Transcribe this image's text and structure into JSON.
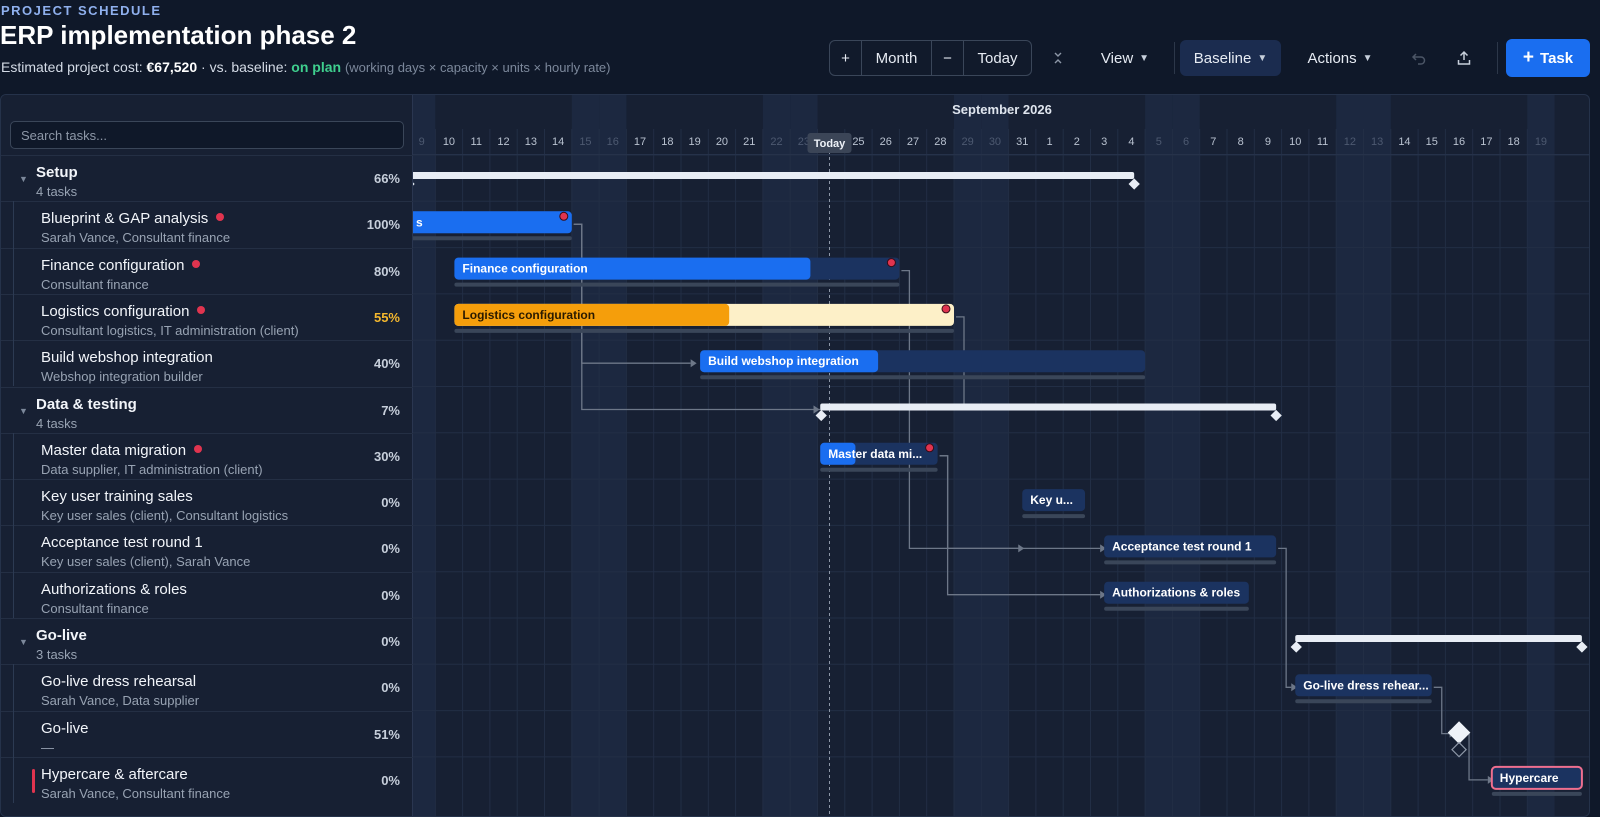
{
  "header": {
    "eyebrow": "PROJECT SCHEDULE",
    "title": "ERP implementation phase 2",
    "cost_label": "Estimated project cost:",
    "cost_value": "€67,520",
    "baseline_label": "· vs. baseline:",
    "baseline_status": "on plan",
    "cost_note": "(working days × capacity × units × hourly rate)"
  },
  "toolbar": {
    "zoom_in": "+",
    "scale": "Month",
    "zoom_out": "−",
    "today": "Today",
    "view": "View",
    "baseline": "Baseline",
    "actions": "Actions",
    "add_task": "Task",
    "colors": {
      "primary": "#1a6ef0",
      "baseline_bg": "#1b2c4f"
    }
  },
  "search": {
    "placeholder": "Search tasks..."
  },
  "timeline": {
    "month_label": "September 2026",
    "today_label": "Today",
    "days": [
      "9",
      "10",
      "11",
      "12",
      "13",
      "14",
      "15",
      "16",
      "17",
      "18",
      "19",
      "20",
      "21",
      "22",
      "23",
      "24",
      "25",
      "26",
      "27",
      "28",
      "29",
      "30",
      "31",
      "1",
      "2",
      "3",
      "4",
      "5",
      "6",
      "7",
      "8",
      "9",
      "10",
      "11",
      "12",
      "13",
      "14",
      "15",
      "16",
      "17",
      "18",
      "19"
    ],
    "dim_days": [
      0,
      6,
      7,
      13,
      14,
      20,
      21,
      27,
      28,
      34,
      35,
      41
    ],
    "today_index": 15
  },
  "rows": [
    {
      "kind": "group",
      "name": "Setup",
      "sub": "4 tasks",
      "pct": "66%"
    },
    {
      "kind": "task",
      "name": "Blueprint & GAP analysis",
      "sub": "Sarah Vance, Consultant finance",
      "pct": "100%",
      "dot": true
    },
    {
      "kind": "task",
      "name": "Finance configuration",
      "sub": "Consultant finance",
      "pct": "80%",
      "dot": true
    },
    {
      "kind": "task",
      "name": "Logistics configuration",
      "sub": "Consultant logistics, IT administration (client)",
      "pct": "55%",
      "dot": true,
      "pct_color": "#f5b82e"
    },
    {
      "kind": "task",
      "name": "Build webshop integration",
      "sub": "Webshop integration builder",
      "pct": "40%"
    },
    {
      "kind": "group",
      "name": "Data & testing",
      "sub": "4 tasks",
      "pct": "7%"
    },
    {
      "kind": "task",
      "name": "Master data migration",
      "sub": "Data supplier, IT administration (client)",
      "pct": "30%",
      "dot": true
    },
    {
      "kind": "task",
      "name": "Key user training sales",
      "sub": "Key user sales (client), Consultant logistics",
      "pct": "0%"
    },
    {
      "kind": "task",
      "name": "Acceptance test round 1",
      "sub": "Key user sales (client), Sarah Vance",
      "pct": "0%"
    },
    {
      "kind": "task",
      "name": "Authorizations & roles",
      "sub": "Consultant finance",
      "pct": "0%"
    },
    {
      "kind": "group",
      "name": "Go-live",
      "sub": "3 tasks",
      "pct": "0%"
    },
    {
      "kind": "task",
      "name": "Go-live dress rehearsal",
      "sub": "Sarah Vance, Data supplier",
      "pct": "0%"
    },
    {
      "kind": "task",
      "name": "Go-live",
      "sub": "—",
      "pct": "51%"
    },
    {
      "kind": "task",
      "name": "Hypercare & aftercare",
      "sub": "Sarah Vance, Consultant finance",
      "pct": "0%",
      "flag": true
    }
  ],
  "bars": [
    {
      "row": 0,
      "type": "summary",
      "start": 0,
      "end": 26.6
    },
    {
      "row": 1,
      "type": "task",
      "label": "s",
      "start": 0,
      "end": 6,
      "progress": 1.0,
      "color": "#1a6ef0",
      "dot": true
    },
    {
      "row": 2,
      "type": "task",
      "label": "Finance configuration",
      "start": 1.7,
      "end": 18,
      "progress": 0.8,
      "color": "#1a6ef0",
      "dot": true
    },
    {
      "row": 3,
      "type": "task",
      "label": "Logistics configuration",
      "start": 1.7,
      "end": 20,
      "progress": 0.55,
      "color": "#f59e0b",
      "rest": "#fdf0c8",
      "dot": true,
      "dark": true
    },
    {
      "row": 4,
      "type": "task",
      "label": "Build webshop integration",
      "start": 10.7,
      "end": 27,
      "progress": 0.4,
      "color": "#1a6ef0"
    },
    {
      "row": 5,
      "type": "summary",
      "start": 15.1,
      "end": 31.8
    },
    {
      "row": 6,
      "type": "task",
      "label": "Master data mi...",
      "start": 15.1,
      "end": 19.4,
      "progress": 0.3,
      "color": "#1a6ef0",
      "dot": true
    },
    {
      "row": 7,
      "type": "task",
      "label": "Key u...",
      "start": 22.5,
      "end": 24.8,
      "progress": 0,
      "color": "#1a6ef0"
    },
    {
      "row": 8,
      "type": "task",
      "label": "Acceptance test round 1",
      "start": 25.5,
      "end": 31.8,
      "progress": 0,
      "color": "#1a6ef0"
    },
    {
      "row": 9,
      "type": "task",
      "label": "Authorizations & roles",
      "start": 25.5,
      "end": 30.8,
      "progress": 0,
      "color": "#1a6ef0"
    },
    {
      "row": 10,
      "type": "summary",
      "start": 32.5,
      "end": 43
    },
    {
      "row": 11,
      "type": "task",
      "label": "Go-live dress rehear...",
      "start": 32.5,
      "end": 37.5,
      "progress": 0,
      "color": "#1a6ef0"
    },
    {
      "row": 12,
      "type": "milestone",
      "at": 38.5
    },
    {
      "row": 13,
      "type": "task",
      "label": "Hypercare",
      "start": 39.7,
      "end": 43,
      "progress": 0,
      "color": "#1a6ef0",
      "pink": true
    }
  ],
  "links": [
    [
      1,
      5,
      15
    ],
    [
      1,
      3,
      10.5
    ],
    [
      1,
      4,
      10.5
    ],
    [
      2,
      8,
      22.5
    ],
    [
      3,
      5,
      15
    ],
    [
      6,
      8,
      25.5
    ],
    [
      6,
      9,
      25.5
    ],
    [
      8,
      11,
      32.5
    ],
    [
      11,
      12,
      38.3
    ],
    [
      12,
      13,
      39.7
    ]
  ]
}
